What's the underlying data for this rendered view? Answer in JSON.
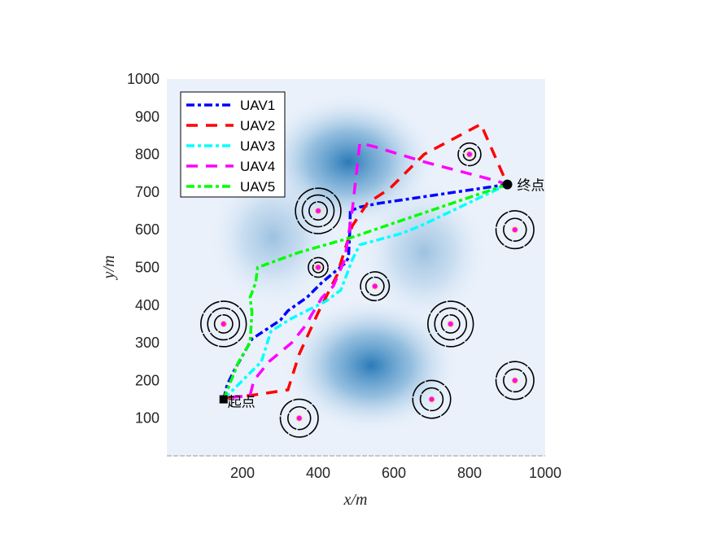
{
  "chart_data": {
    "type": "line",
    "title": "",
    "xlabel": "x/m",
    "ylabel": "y/m",
    "xlim": [
      0,
      1000
    ],
    "ylim": [
      0,
      1000
    ],
    "xticks": [
      200,
      400,
      600,
      800,
      1000
    ],
    "yticks": [
      100,
      200,
      300,
      400,
      500,
      600,
      700,
      800,
      900,
      1000
    ],
    "legend_position": "top-left",
    "start": {
      "label": "起点",
      "x": 150,
      "y": 150
    },
    "goal": {
      "label": "终点",
      "x": 900,
      "y": 720
    },
    "series": [
      {
        "name": "UAV1",
        "color": "#0000ff",
        "dash": "dashdot",
        "points": [
          [
            150,
            150
          ],
          [
            160,
            190
          ],
          [
            180,
            230
          ],
          [
            225,
            310
          ],
          [
            255,
            330
          ],
          [
            300,
            360
          ],
          [
            320,
            385
          ],
          [
            370,
            420
          ],
          [
            410,
            460
          ],
          [
            470,
            510
          ],
          [
            480,
            525
          ],
          [
            483,
            580
          ],
          [
            485,
            650
          ],
          [
            510,
            660
          ],
          [
            560,
            670
          ],
          [
            900,
            720
          ]
        ]
      },
      {
        "name": "UAV2",
        "color": "#ff0000",
        "dash": "dash",
        "points": [
          [
            160,
            155
          ],
          [
            220,
            160
          ],
          [
            320,
            175
          ],
          [
            350,
            270
          ],
          [
            400,
            380
          ],
          [
            450,
            480
          ],
          [
            490,
            610
          ],
          [
            530,
            670
          ],
          [
            590,
            710
          ],
          [
            680,
            800
          ],
          [
            830,
            880
          ],
          [
            900,
            720
          ]
        ]
      },
      {
        "name": "UAV3",
        "color": "#00ffff",
        "dash": "dashdot",
        "points": [
          [
            150,
            150
          ],
          [
            200,
            200
          ],
          [
            250,
            250
          ],
          [
            275,
            330
          ],
          [
            290,
            340
          ],
          [
            330,
            365
          ],
          [
            380,
            390
          ],
          [
            420,
            410
          ],
          [
            460,
            440
          ],
          [
            490,
            520
          ],
          [
            510,
            560
          ],
          [
            620,
            590
          ],
          [
            670,
            610
          ],
          [
            900,
            720
          ]
        ]
      },
      {
        "name": "UAV4",
        "color": "#ff00ff",
        "dash": "dash",
        "points": [
          [
            170,
            155
          ],
          [
            220,
            160
          ],
          [
            230,
            200
          ],
          [
            270,
            250
          ],
          [
            330,
            300
          ],
          [
            370,
            350
          ],
          [
            380,
            370
          ],
          [
            410,
            420
          ],
          [
            440,
            450
          ],
          [
            470,
            520
          ],
          [
            490,
            650
          ],
          [
            500,
            740
          ],
          [
            510,
            830
          ],
          [
            550,
            820
          ],
          [
            680,
            780
          ],
          [
            870,
            730
          ],
          [
            900,
            720
          ]
        ]
      },
      {
        "name": "UAV5",
        "color": "#00ff00",
        "dash": "dashdot",
        "points": [
          [
            150,
            150
          ],
          [
            190,
            250
          ],
          [
            220,
            300
          ],
          [
            225,
            380
          ],
          [
            220,
            420
          ],
          [
            235,
            460
          ],
          [
            240,
            500
          ],
          [
            350,
            540
          ],
          [
            490,
            580
          ],
          [
            900,
            720
          ]
        ]
      }
    ],
    "threats": [
      {
        "x": 150,
        "y": 350,
        "rings": [
          60,
          42,
          24
        ]
      },
      {
        "x": 400,
        "y": 650,
        "rings": [
          60,
          42,
          24
        ]
      },
      {
        "x": 750,
        "y": 350,
        "rings": [
          60,
          42,
          24
        ]
      },
      {
        "x": 400,
        "y": 500,
        "rings": [
          26,
          14
        ]
      },
      {
        "x": 550,
        "y": 450,
        "rings": [
          38,
          24
        ]
      },
      {
        "x": 800,
        "y": 800,
        "rings": [
          30,
          16
        ]
      },
      {
        "x": 920,
        "y": 600,
        "rings": [
          50,
          30
        ]
      },
      {
        "x": 920,
        "y": 200,
        "rings": [
          50,
          30
        ]
      },
      {
        "x": 700,
        "y": 150,
        "rings": [
          50,
          30
        ]
      },
      {
        "x": 350,
        "y": 100,
        "rings": [
          50,
          30
        ]
      }
    ],
    "terrain_peaks": [
      {
        "x": 480,
        "y": 780,
        "strength": 1.0
      },
      {
        "x": 540,
        "y": 240,
        "strength": 1.0
      },
      {
        "x": 280,
        "y": 580,
        "strength": 0.4
      },
      {
        "x": 680,
        "y": 540,
        "strength": 0.4
      }
    ]
  }
}
